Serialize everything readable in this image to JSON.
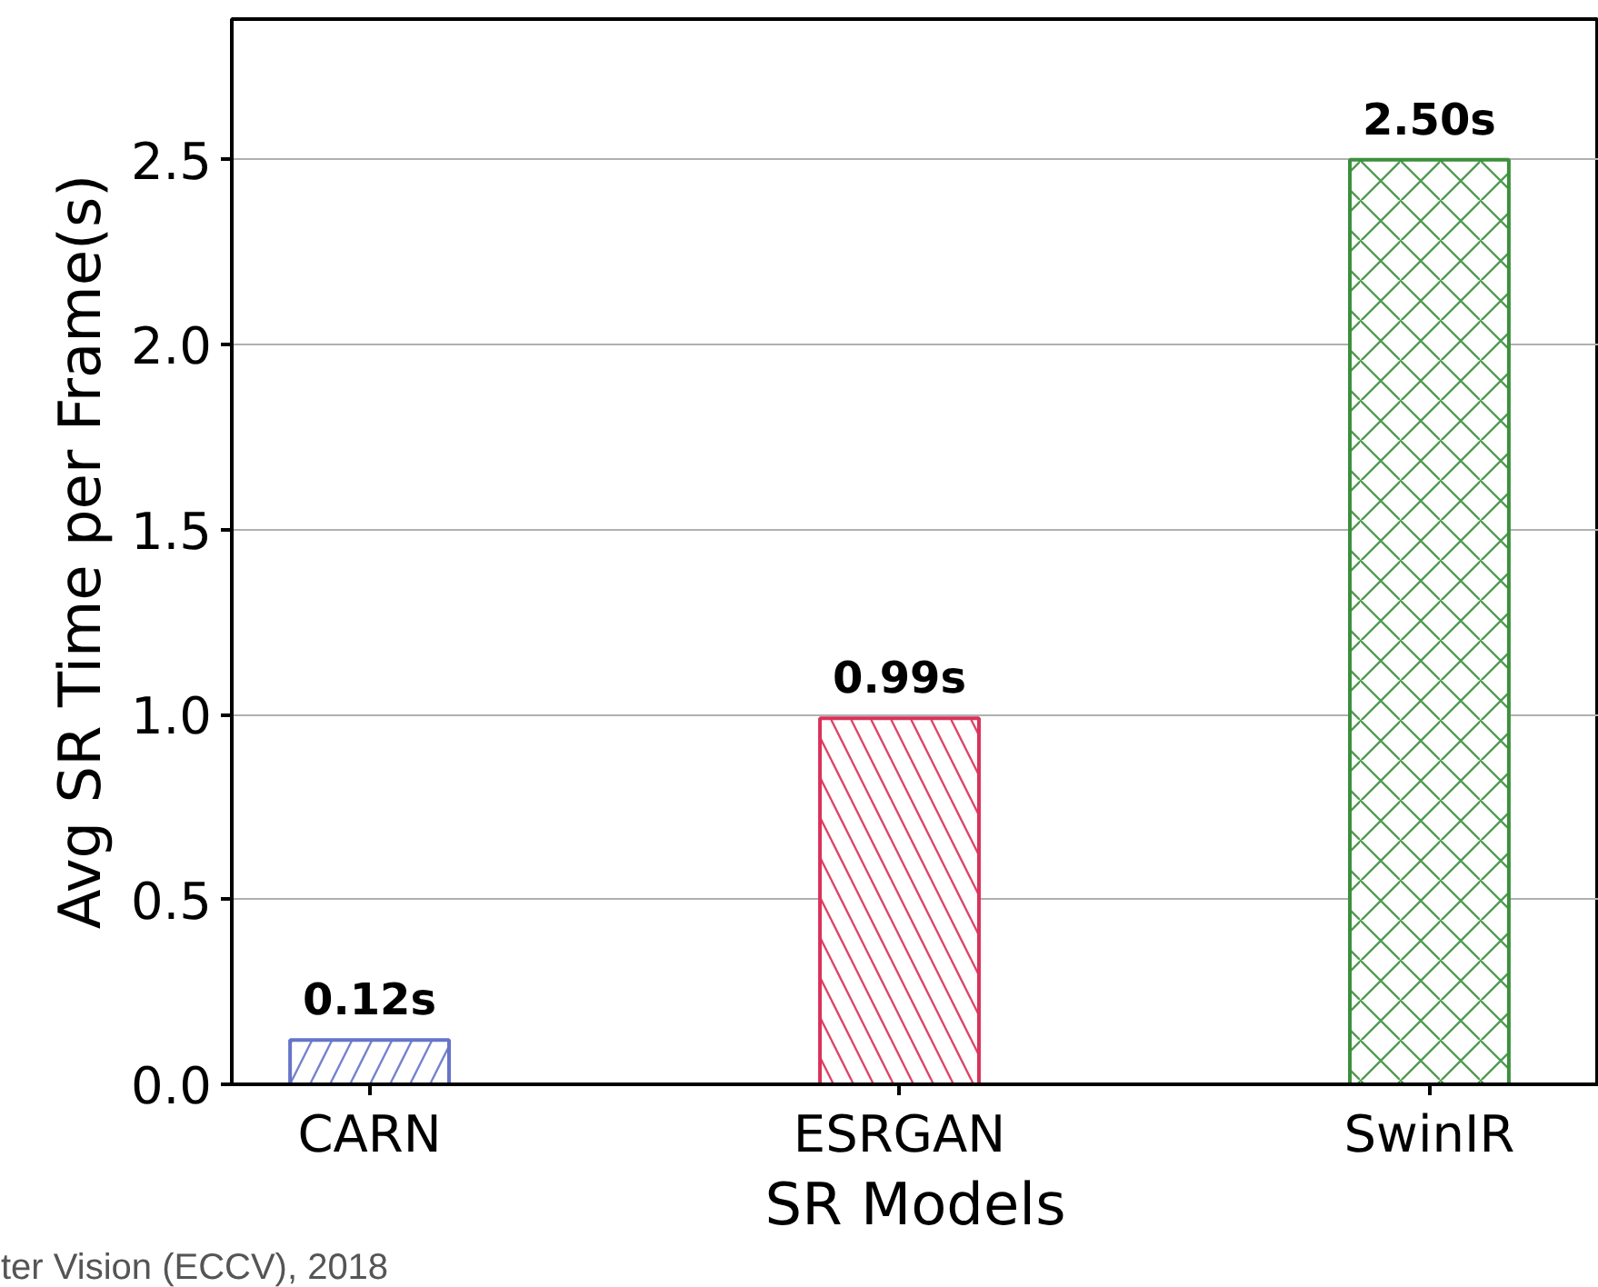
{
  "chart_data": {
    "type": "bar",
    "xlabel": "SR Models",
    "ylabel": "Avg SR Time per Frame(s)",
    "categories": [
      "CARN",
      "ESRGAN",
      "SwinIR"
    ],
    "values": [
      0.12,
      0.99,
      2.5
    ],
    "colors": [
      "#6674c8",
      "#d9325a",
      "#3d8f3d"
    ],
    "value_labels": [
      "0.12s",
      "0.99s",
      "2.50s"
    ],
    "ylim": [
      0,
      2.88
    ],
    "yticks": [
      {
        "value": 0,
        "label": "0.0"
      },
      {
        "value": 0.5,
        "label": "0.5"
      },
      {
        "value": 1,
        "label": "1.0"
      },
      {
        "value": 1.5,
        "label": "1.5"
      },
      {
        "value": 2,
        "label": "2.0"
      },
      {
        "value": 2.5,
        "label": "2.5"
      }
    ],
    "grid": "y",
    "annotations": [
      "ter Vision (ECCV), 2018"
    ]
  }
}
